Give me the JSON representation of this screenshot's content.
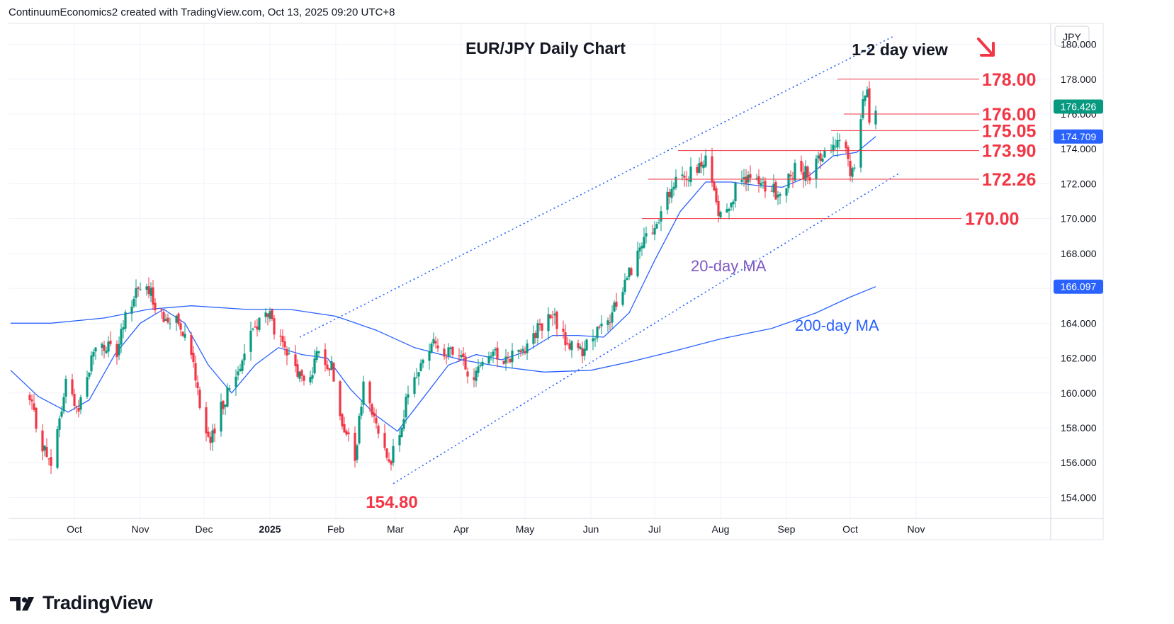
{
  "header": {
    "text": "ContinuumEconomics2 created with TradingView.com, Oct 13, 2025 09:20 UTC+8"
  },
  "footer": {
    "brand": "TradingView",
    "logo_icon": "tradingview-logo-icon"
  },
  "colors": {
    "up": "#089981",
    "down": "#f23645",
    "ma": "#2962ff",
    "ma20_label": "#7e57c2",
    "level": "#f23645",
    "grid": "#f0f3fa",
    "axis_text": "#131722"
  },
  "chart_data": {
    "type": "candlestick",
    "title": "EUR/JPY Daily Chart",
    "view_label": "1-2 day view",
    "currency": "JPY",
    "y_ticks": [
      "154.000",
      "156.000",
      "158.000",
      "160.000",
      "162.000",
      "164.000",
      "166.000",
      "168.000",
      "170.000",
      "172.000",
      "174.000",
      "176.000",
      "178.000",
      "180.000"
    ],
    "x_ticks": [
      "Oct",
      "Nov",
      "Dec",
      "2025",
      "Feb",
      "Mar",
      "Apr",
      "May",
      "Jun",
      "Jul",
      "Aug",
      "Sep",
      "Oct",
      "Nov"
    ],
    "ylim": [
      152.8,
      181.2
    ],
    "price_tags": [
      {
        "label": "176.426",
        "value": 176.426,
        "bg": "#089981"
      },
      {
        "label": "174.709",
        "value": 174.709,
        "bg": "#2962ff"
      },
      {
        "label": "166.097",
        "value": 166.097,
        "bg": "#2962ff"
      }
    ],
    "levels": [
      {
        "label": "178.00",
        "value": 178.0,
        "start": "2025-09-25"
      },
      {
        "label": "176.00",
        "value": 176.0,
        "start": "2025-09-28"
      },
      {
        "label": "175.05",
        "value": 175.05,
        "start": "2025-09-22"
      },
      {
        "label": "173.90",
        "value": 173.9,
        "start": "2025-07-12"
      },
      {
        "label": "172.26",
        "value": 172.26,
        "start": "2025-06-28"
      },
      {
        "label": "170.00",
        "value": 170.0,
        "start": "2025-06-25"
      }
    ],
    "low_annotation": {
      "label": "154.80",
      "value": 154.8,
      "date": "2025-02-28"
    },
    "annotations": [
      {
        "label": "20-day MA",
        "date": "2025-07-18",
        "value": 167.3,
        "color": "#7e57c2"
      },
      {
        "label": "200-day MA",
        "date": "2025-09-05",
        "value": 163.9,
        "color": "#2962ff"
      }
    ],
    "channel": {
      "upper": [
        {
          "date": "2025-01-15",
          "value": 163.2
        },
        {
          "date": "2025-10-22",
          "value": 180.5
        }
      ],
      "lower": [
        {
          "date": "2025-02-28",
          "value": 154.8
        },
        {
          "date": "2025-10-24",
          "value": 172.6
        }
      ]
    },
    "arrow": {
      "direction": "down-right",
      "color": "#f23645"
    },
    "series": [
      {
        "name": "EUR/JPY",
        "type": "candles",
        "anchors": [
          {
            "date": "2024-09-10",
            "value": 159.5
          },
          {
            "date": "2024-09-14",
            "value": 157.8
          },
          {
            "date": "2024-09-20",
            "value": 155.6
          },
          {
            "date": "2024-09-27",
            "value": 160.5
          },
          {
            "date": "2024-10-03",
            "value": 159.2
          },
          {
            "date": "2024-10-11",
            "value": 162.8
          },
          {
            "date": "2024-10-21",
            "value": 162.3
          },
          {
            "date": "2024-10-26",
            "value": 164.8
          },
          {
            "date": "2024-10-31",
            "value": 166.2
          },
          {
            "date": "2024-11-06",
            "value": 165.6
          },
          {
            "date": "2024-11-13",
            "value": 164.0
          },
          {
            "date": "2024-11-18",
            "value": 164.6
          },
          {
            "date": "2024-11-25",
            "value": 162.5
          },
          {
            "date": "2024-11-30",
            "value": 158.8
          },
          {
            "date": "2024-12-04",
            "value": 157.0
          },
          {
            "date": "2024-12-10",
            "value": 159.5
          },
          {
            "date": "2024-12-16",
            "value": 161.0
          },
          {
            "date": "2024-12-23",
            "value": 163.5
          },
          {
            "date": "2024-12-31",
            "value": 164.6
          },
          {
            "date": "2025-01-07",
            "value": 162.5
          },
          {
            "date": "2025-01-14",
            "value": 161.2
          },
          {
            "date": "2025-01-18",
            "value": 160.4
          },
          {
            "date": "2025-01-24",
            "value": 162.3
          },
          {
            "date": "2025-01-30",
            "value": 161.5
          },
          {
            "date": "2025-02-04",
            "value": 158.5
          },
          {
            "date": "2025-02-10",
            "value": 156.0
          },
          {
            "date": "2025-02-14",
            "value": 160.5
          },
          {
            "date": "2025-02-20",
            "value": 158.0
          },
          {
            "date": "2025-02-27",
            "value": 156.2
          },
          {
            "date": "2025-03-04",
            "value": 157.8
          },
          {
            "date": "2025-03-07",
            "value": 160.2
          },
          {
            "date": "2025-03-13",
            "value": 161.5
          },
          {
            "date": "2025-03-18",
            "value": 163.0
          },
          {
            "date": "2025-03-24",
            "value": 162.4
          },
          {
            "date": "2025-04-01",
            "value": 161.9
          },
          {
            "date": "2025-04-07",
            "value": 160.6
          },
          {
            "date": "2025-04-12",
            "value": 162.6
          },
          {
            "date": "2025-04-18",
            "value": 162.0
          },
          {
            "date": "2025-04-25",
            "value": 162.2
          },
          {
            "date": "2025-05-02",
            "value": 162.8
          },
          {
            "date": "2025-05-08",
            "value": 163.8
          },
          {
            "date": "2025-05-14",
            "value": 164.4
          },
          {
            "date": "2025-05-20",
            "value": 163.0
          },
          {
            "date": "2025-05-27",
            "value": 162.3
          },
          {
            "date": "2025-06-02",
            "value": 163.3
          },
          {
            "date": "2025-06-09",
            "value": 163.8
          },
          {
            "date": "2025-06-14",
            "value": 165.6
          },
          {
            "date": "2025-06-20",
            "value": 167.2
          },
          {
            "date": "2025-06-26",
            "value": 168.6
          },
          {
            "date": "2025-07-02",
            "value": 169.5
          },
          {
            "date": "2025-07-08",
            "value": 171.5
          },
          {
            "date": "2025-07-14",
            "value": 172.4
          },
          {
            "date": "2025-07-20",
            "value": 172.6
          },
          {
            "date": "2025-07-26",
            "value": 173.4
          },
          {
            "date": "2025-07-31",
            "value": 170.3
          },
          {
            "date": "2025-08-05",
            "value": 171.0
          },
          {
            "date": "2025-08-12",
            "value": 172.4
          },
          {
            "date": "2025-08-18",
            "value": 172.0
          },
          {
            "date": "2025-08-25",
            "value": 171.6
          },
          {
            "date": "2025-08-29",
            "value": 171.4
          },
          {
            "date": "2025-09-05",
            "value": 172.8
          },
          {
            "date": "2025-09-12",
            "value": 172.6
          },
          {
            "date": "2025-09-18",
            "value": 173.8
          },
          {
            "date": "2025-09-24",
            "value": 174.4
          },
          {
            "date": "2025-09-28",
            "value": 174.8
          },
          {
            "date": "2025-10-01",
            "value": 172.6
          },
          {
            "date": "2025-10-02",
            "value": 172.7
          },
          {
            "date": "2025-10-03",
            "value": 173.1
          },
          {
            "date": "2025-10-06",
            "value": 175.3
          },
          {
            "date": "2025-10-07",
            "value": 176.9
          },
          {
            "date": "2025-10-08",
            "value": 177.4
          },
          {
            "date": "2025-10-09",
            "value": 177.6
          },
          {
            "date": "2025-10-10",
            "value": 175.8
          },
          {
            "date": "2025-10-13",
            "value": 176.426
          }
        ]
      },
      {
        "name": "20-day MA",
        "type": "line",
        "color": "#2962ff",
        "points": [
          {
            "date": "2024-09-01",
            "value": 161.3
          },
          {
            "date": "2024-09-14",
            "value": 159.8
          },
          {
            "date": "2024-09-28",
            "value": 158.9
          },
          {
            "date": "2024-10-08",
            "value": 159.6
          },
          {
            "date": "2024-10-20",
            "value": 162.2
          },
          {
            "date": "2024-11-01",
            "value": 164.0
          },
          {
            "date": "2024-11-12",
            "value": 164.8
          },
          {
            "date": "2024-11-22",
            "value": 164.0
          },
          {
            "date": "2024-12-03",
            "value": 161.6
          },
          {
            "date": "2024-12-14",
            "value": 160.0
          },
          {
            "date": "2024-12-25",
            "value": 161.6
          },
          {
            "date": "2025-01-05",
            "value": 162.6
          },
          {
            "date": "2025-01-16",
            "value": 162.2
          },
          {
            "date": "2025-01-28",
            "value": 162.0
          },
          {
            "date": "2025-02-08",
            "value": 160.2
          },
          {
            "date": "2025-02-20",
            "value": 158.7
          },
          {
            "date": "2025-03-02",
            "value": 157.8
          },
          {
            "date": "2025-03-14",
            "value": 159.7
          },
          {
            "date": "2025-03-26",
            "value": 161.6
          },
          {
            "date": "2025-04-08",
            "value": 162.2
          },
          {
            "date": "2025-04-20",
            "value": 161.9
          },
          {
            "date": "2025-05-02",
            "value": 162.4
          },
          {
            "date": "2025-05-14",
            "value": 163.3
          },
          {
            "date": "2025-05-26",
            "value": 163.3
          },
          {
            "date": "2025-06-07",
            "value": 163.2
          },
          {
            "date": "2025-06-19",
            "value": 164.6
          },
          {
            "date": "2025-07-01",
            "value": 167.6
          },
          {
            "date": "2025-07-13",
            "value": 170.4
          },
          {
            "date": "2025-07-25",
            "value": 172.1
          },
          {
            "date": "2025-08-06",
            "value": 172.1
          },
          {
            "date": "2025-08-18",
            "value": 171.9
          },
          {
            "date": "2025-08-30",
            "value": 171.8
          },
          {
            "date": "2025-09-11",
            "value": 172.4
          },
          {
            "date": "2025-09-23",
            "value": 173.6
          },
          {
            "date": "2025-10-04",
            "value": 173.8
          },
          {
            "date": "2025-10-13",
            "value": 174.709
          }
        ]
      },
      {
        "name": "200-day MA",
        "type": "line",
        "color": "#2962ff",
        "points": [
          {
            "date": "2024-09-01",
            "value": 164.0
          },
          {
            "date": "2024-09-20",
            "value": 164.0
          },
          {
            "date": "2024-10-15",
            "value": 164.3
          },
          {
            "date": "2024-11-05",
            "value": 164.8
          },
          {
            "date": "2024-11-25",
            "value": 165.0
          },
          {
            "date": "2024-12-20",
            "value": 164.8
          },
          {
            "date": "2025-01-10",
            "value": 164.8
          },
          {
            "date": "2025-02-01",
            "value": 164.4
          },
          {
            "date": "2025-02-20",
            "value": 163.6
          },
          {
            "date": "2025-03-10",
            "value": 162.6
          },
          {
            "date": "2025-04-01",
            "value": 161.9
          },
          {
            "date": "2025-04-20",
            "value": 161.5
          },
          {
            "date": "2025-05-10",
            "value": 161.2
          },
          {
            "date": "2025-06-01",
            "value": 161.3
          },
          {
            "date": "2025-06-20",
            "value": 161.8
          },
          {
            "date": "2025-07-10",
            "value": 162.4
          },
          {
            "date": "2025-08-01",
            "value": 163.1
          },
          {
            "date": "2025-08-25",
            "value": 163.7
          },
          {
            "date": "2025-09-15",
            "value": 164.6
          },
          {
            "date": "2025-10-01",
            "value": 165.5
          },
          {
            "date": "2025-10-13",
            "value": 166.097
          }
        ]
      }
    ]
  }
}
